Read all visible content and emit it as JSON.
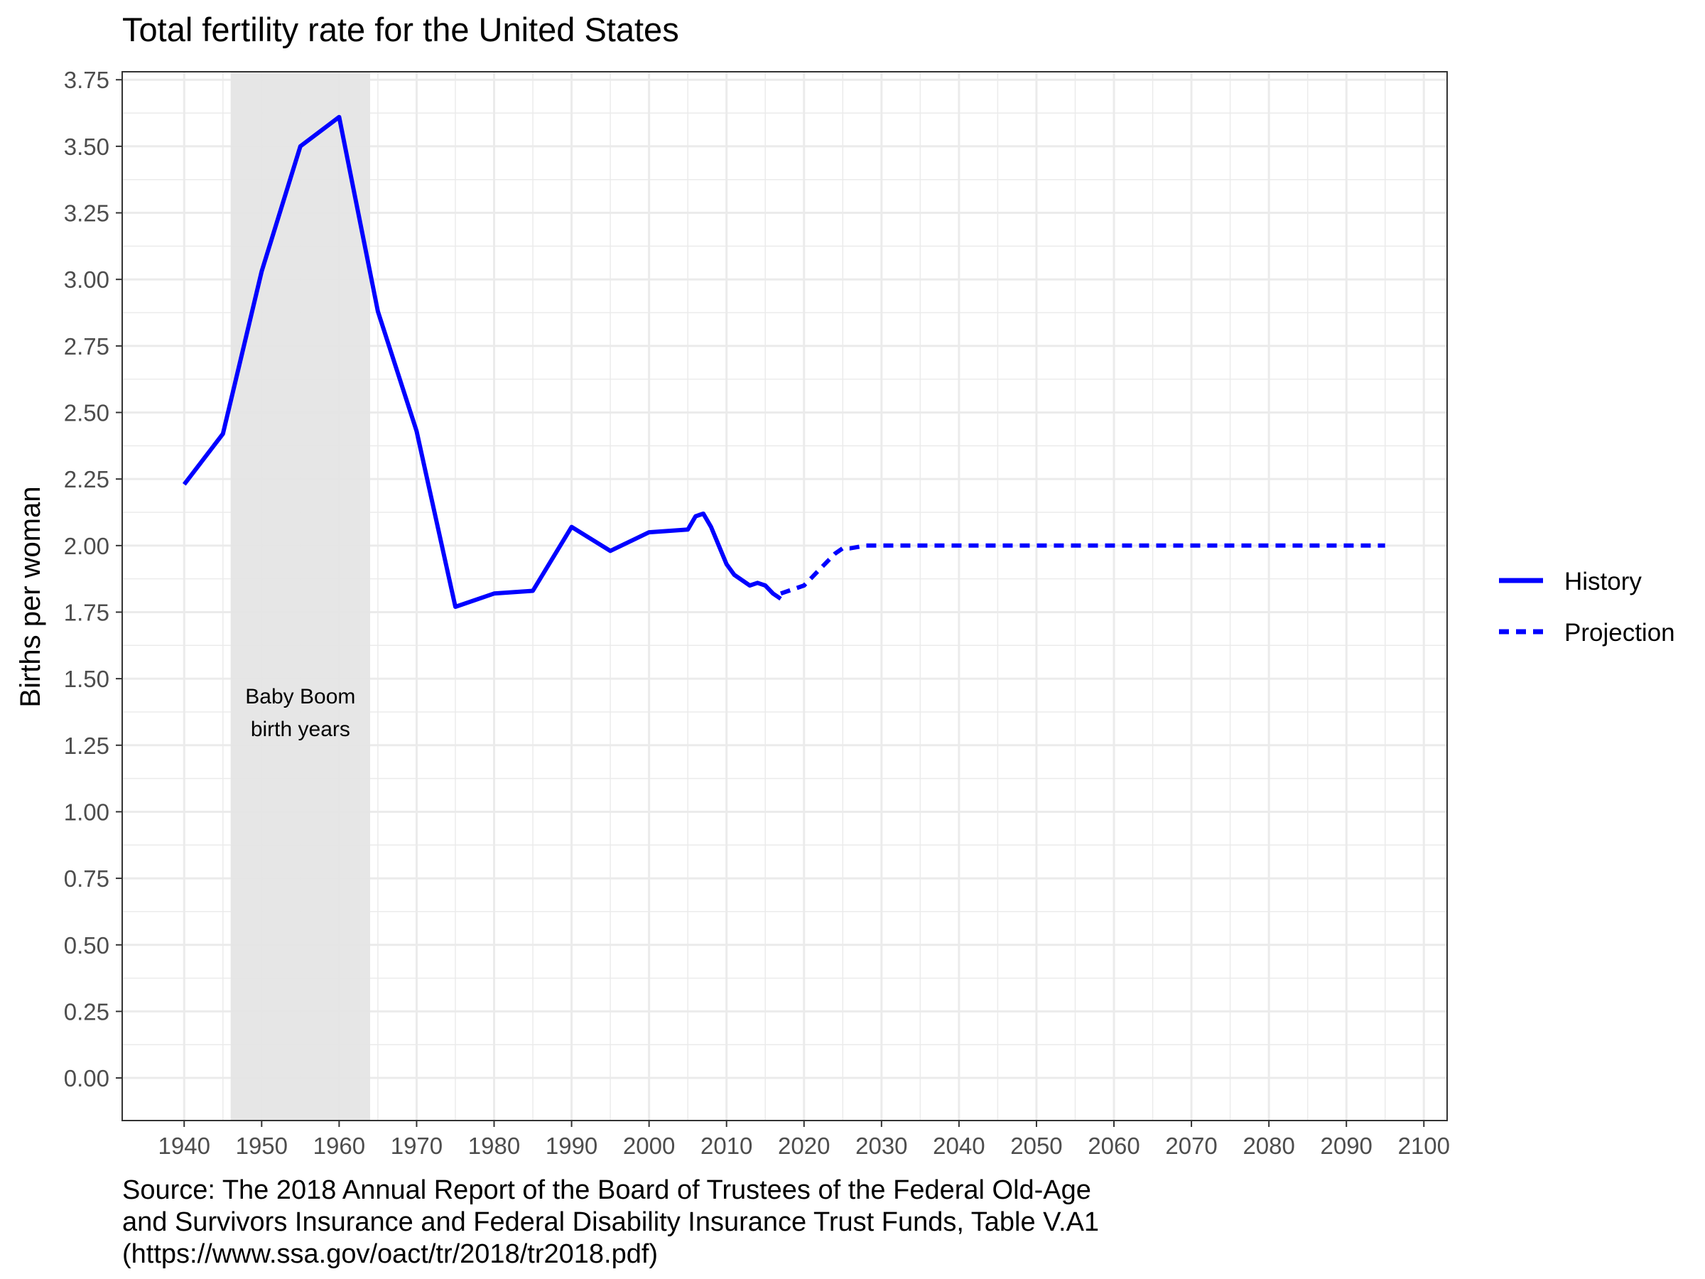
{
  "chart_data": {
    "type": "line",
    "title": "Total fertility rate for the United States",
    "xlabel": "",
    "ylabel": "Births per woman",
    "xlim": [
      1932,
      2103
    ],
    "ylim": [
      -0.16,
      3.78
    ],
    "x_ticks": [
      1940,
      1950,
      1960,
      1970,
      1980,
      1990,
      2000,
      2010,
      2020,
      2030,
      2040,
      2050,
      2060,
      2070,
      2080,
      2090,
      2100
    ],
    "x_tick_labels": [
      "1940",
      "1950",
      "1960",
      "1970",
      "1980",
      "1990",
      "2000",
      "2010",
      "2020",
      "2030",
      "2040",
      "2050",
      "2060",
      "2070",
      "2080",
      "2090",
      "2100"
    ],
    "y_ticks": [
      0,
      0.25,
      0.5,
      0.75,
      1,
      1.25,
      1.5,
      1.75,
      2,
      2.25,
      2.5,
      2.75,
      3,
      3.25,
      3.5,
      3.75
    ],
    "y_tick_labels": [
      "0.00",
      "0.25",
      "0.50",
      "0.75",
      "1.00",
      "1.25",
      "1.50",
      "1.75",
      "2.00",
      "2.25",
      "2.50",
      "2.75",
      "3.00",
      "3.25",
      "3.50",
      "3.75"
    ],
    "grid": true,
    "legend_position": "right",
    "shaded_region": {
      "x": [
        1946,
        1964
      ],
      "label_lines": [
        "Baby Boom",
        "birth years"
      ],
      "label_y": 1.38
    },
    "series": [
      {
        "name": "History",
        "color": "#0000ff",
        "linestyle": "solid",
        "x": [
          1940,
          1945,
          1950,
          1955,
          1960,
          1965,
          1970,
          1975,
          1980,
          1985,
          1990,
          1995,
          2000,
          2005,
          2006,
          2007,
          2008,
          2009,
          2010,
          2011,
          2012,
          2013,
          2014,
          2015,
          2016,
          2017
        ],
        "y": [
          2.23,
          2.42,
          3.03,
          3.5,
          3.61,
          2.88,
          2.43,
          1.77,
          1.82,
          1.83,
          2.07,
          1.98,
          2.05,
          2.06,
          2.11,
          2.12,
          2.07,
          2.0,
          1.93,
          1.89,
          1.87,
          1.85,
          1.86,
          1.85,
          1.82,
          1.8
        ]
      },
      {
        "name": "Projection",
        "color": "#0000ff",
        "linestyle": "dashed",
        "x": [
          2017,
          2018,
          2019,
          2020,
          2021,
          2022,
          2023,
          2024,
          2025,
          2026,
          2027,
          2028,
          2029,
          2030,
          2040,
          2050,
          2060,
          2070,
          2080,
          2090,
          2095
        ],
        "y": [
          1.82,
          1.83,
          1.84,
          1.85,
          1.88,
          1.91,
          1.94,
          1.97,
          1.99,
          1.99,
          1.995,
          2.0,
          2.0,
          2.0,
          2.0,
          2.0,
          2.0,
          2.0,
          2.0,
          2.0,
          2.0
        ]
      }
    ]
  },
  "legend": {
    "items": [
      {
        "label": "History"
      },
      {
        "label": "Projection"
      }
    ]
  },
  "caption": {
    "lines": [
      "Source: The 2018 Annual Report of the Board of Trustees of the Federal Old-Age",
      "and Survivors Insurance and Federal Disability Insurance Trust Funds, Table V.A1",
      "(https://www.ssa.gov/oact/tr/2018/tr2018.pdf)"
    ]
  },
  "colors": {
    "line": "#0000ff",
    "shade": "#e5e5e5",
    "grid": "#ebebeb",
    "text": "#4d4d4d"
  }
}
